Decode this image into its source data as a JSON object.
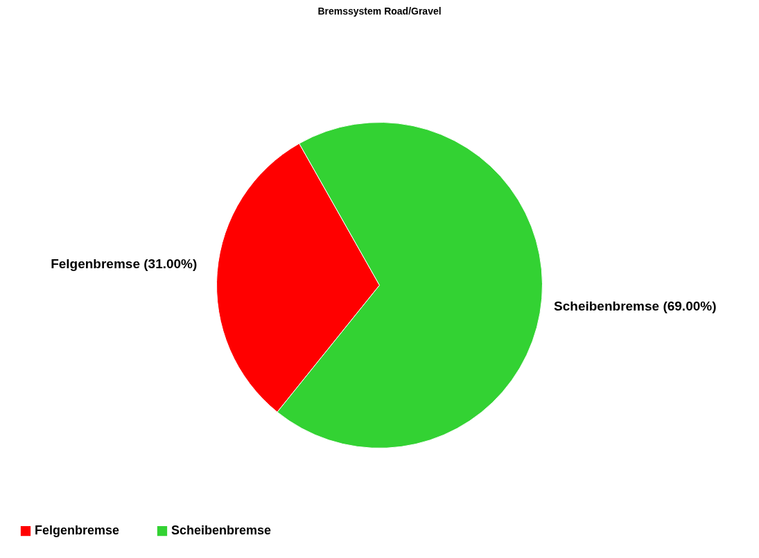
{
  "chart_data": {
    "type": "pie",
    "title": "Bremssystem Road/Gravel",
    "categories": [
      "Felgenbremse",
      "Scheibenbremse"
    ],
    "values": [
      31,
      69
    ],
    "colors": [
      "#ff0000",
      "#33d233"
    ],
    "value_labels": [
      "Felgenbremse (31.00%)",
      "Scheibenbremse (69.00%)"
    ],
    "legend": "bottom left"
  }
}
